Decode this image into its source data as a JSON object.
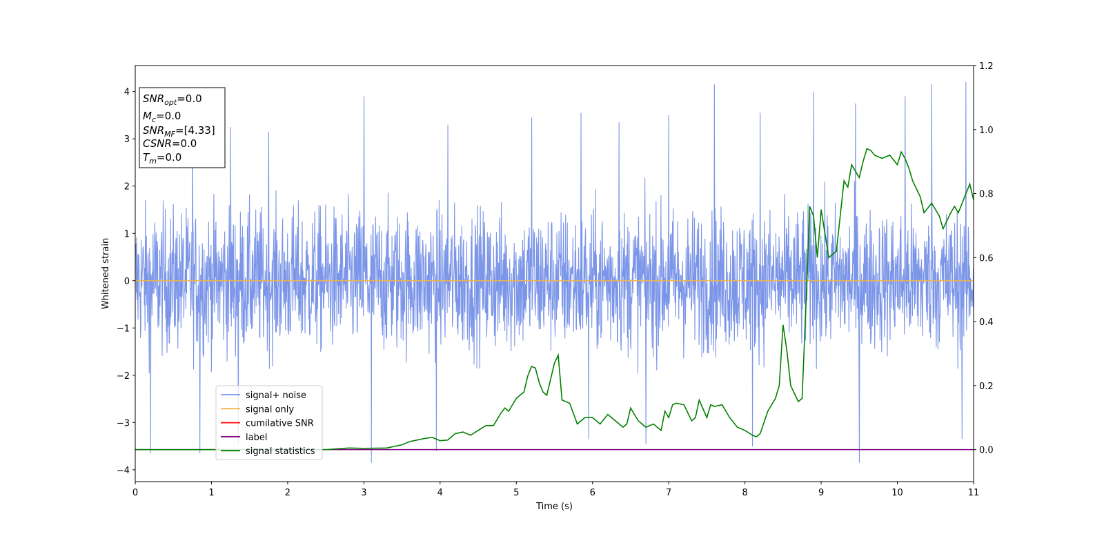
{
  "chart_data": {
    "type": "line",
    "xlabel": "Time (s)",
    "ylabel": "Whitened strain",
    "xlim": [
      0,
      11
    ],
    "ylim_left": [
      -4.25,
      4.55
    ],
    "ylim_right": [
      -0.1,
      1.2
    ],
    "x_ticks": [
      0,
      1,
      2,
      3,
      4,
      5,
      6,
      7,
      8,
      9,
      10,
      11
    ],
    "y_ticks_left": [
      -4,
      -3,
      -2,
      -1,
      0,
      1,
      2,
      3,
      4
    ],
    "y_ticks_right": [
      0.0,
      0.2,
      0.4,
      0.6,
      0.8,
      1.0,
      1.2
    ],
    "colors": {
      "signal_noise": "#7b95e8",
      "signal_only": "#f5b445",
      "cumulative_snr": "#ff0000",
      "label": "#800080",
      "signal_statistics": "#008000"
    },
    "signal_noise": {
      "description_level": "dense noise band",
      "typical_range": [
        -2.2,
        2.3
      ],
      "peaks_high": [
        [
          0.75,
          3.25
        ],
        [
          1.25,
          3.25
        ],
        [
          1.75,
          3.15
        ],
        [
          3.0,
          3.9
        ],
        [
          4.1,
          3.3
        ],
        [
          5.2,
          3.45
        ],
        [
          5.85,
          3.55
        ],
        [
          6.35,
          3.35
        ],
        [
          7.0,
          3.5
        ],
        [
          7.6,
          4.15
        ],
        [
          8.2,
          3.55
        ],
        [
          8.9,
          4.0
        ],
        [
          9.45,
          3.75
        ],
        [
          10.1,
          3.9
        ],
        [
          10.45,
          4.15
        ],
        [
          10.9,
          4.2
        ]
      ],
      "peaks_low": [
        [
          0.2,
          -3.65
        ],
        [
          0.85,
          -3.65
        ],
        [
          1.35,
          -3.45
        ],
        [
          3.1,
          -3.85
        ],
        [
          3.95,
          -3.6
        ],
        [
          5.95,
          -3.35
        ],
        [
          6.7,
          -3.45
        ],
        [
          8.1,
          -3.5
        ],
        [
          9.5,
          -3.85
        ],
        [
          10.85,
          -3.35
        ]
      ]
    },
    "signal_only": {
      "value": 0.0
    },
    "label_series": {
      "value": 0.0
    },
    "signal_statistics": {
      "x": [
        0,
        0.5,
        1.0,
        1.5,
        2.0,
        2.5,
        2.8,
        3.0,
        3.3,
        3.5,
        3.6,
        3.7,
        3.8,
        3.9,
        4.0,
        4.1,
        4.2,
        4.3,
        4.4,
        4.5,
        4.6,
        4.7,
        4.8,
        4.85,
        4.9,
        5.0,
        5.1,
        5.15,
        5.2,
        5.25,
        5.3,
        5.35,
        5.4,
        5.5,
        5.55,
        5.6,
        5.7,
        5.8,
        5.9,
        6.0,
        6.1,
        6.2,
        6.3,
        6.4,
        6.45,
        6.5,
        6.6,
        6.7,
        6.8,
        6.9,
        6.95,
        7.0,
        7.05,
        7.1,
        7.2,
        7.3,
        7.35,
        7.4,
        7.5,
        7.55,
        7.6,
        7.7,
        7.8,
        7.9,
        8.0,
        8.1,
        8.15,
        8.2,
        8.3,
        8.4,
        8.45,
        8.5,
        8.55,
        8.6,
        8.7,
        8.75,
        8.8,
        8.85,
        8.9,
        8.95,
        9.0,
        9.1,
        9.2,
        9.3,
        9.35,
        9.4,
        9.5,
        9.55,
        9.6,
        9.65,
        9.7,
        9.8,
        9.9,
        10.0,
        10.05,
        10.1,
        10.15,
        10.2,
        10.3,
        10.35,
        10.45,
        10.5,
        10.55,
        10.6,
        10.7,
        10.75,
        10.8,
        10.9,
        10.95,
        11.0
      ],
      "y": [
        0.0,
        0.0,
        0.0,
        0.0,
        0.0,
        0.0,
        0.005,
        0.004,
        0.005,
        0.015,
        0.025,
        0.03,
        0.035,
        0.038,
        0.028,
        0.03,
        0.05,
        0.055,
        0.045,
        0.06,
        0.075,
        0.075,
        0.115,
        0.13,
        0.12,
        0.16,
        0.18,
        0.23,
        0.26,
        0.255,
        0.21,
        0.18,
        0.17,
        0.27,
        0.295,
        0.155,
        0.145,
        0.08,
        0.1,
        0.1,
        0.08,
        0.11,
        0.09,
        0.07,
        0.08,
        0.13,
        0.09,
        0.07,
        0.08,
        0.06,
        0.12,
        0.1,
        0.14,
        0.145,
        0.14,
        0.09,
        0.1,
        0.155,
        0.1,
        0.14,
        0.135,
        0.14,
        0.1,
        0.07,
        0.06,
        0.045,
        0.04,
        0.05,
        0.12,
        0.16,
        0.2,
        0.39,
        0.31,
        0.2,
        0.15,
        0.16,
        0.45,
        0.76,
        0.73,
        0.6,
        0.75,
        0.6,
        0.62,
        0.84,
        0.82,
        0.89,
        0.85,
        0.9,
        0.94,
        0.935,
        0.92,
        0.91,
        0.92,
        0.89,
        0.93,
        0.91,
        0.88,
        0.84,
        0.79,
        0.74,
        0.77,
        0.75,
        0.73,
        0.69,
        0.74,
        0.76,
        0.74,
        0.8,
        0.83,
        0.78
      ]
    },
    "legend": {
      "placement": "lower-left",
      "entries": [
        "signal+ noise",
        "signal only",
        "cumilative SNR",
        "label",
        "signal statistics"
      ]
    },
    "annotation": {
      "lines": [
        {
          "base": "SNR",
          "sub": "opt",
          "value": "=0.0"
        },
        {
          "base": "M",
          "sub": "c",
          "value": "=0.0"
        },
        {
          "base": "SNR",
          "sub": "MF",
          "value": "=[4.33]"
        },
        {
          "base": "CSNR",
          "sub": "",
          "value": "=0.0"
        },
        {
          "base": "T",
          "sub": "m",
          "value": "=0.0"
        }
      ]
    },
    "grid": false
  }
}
